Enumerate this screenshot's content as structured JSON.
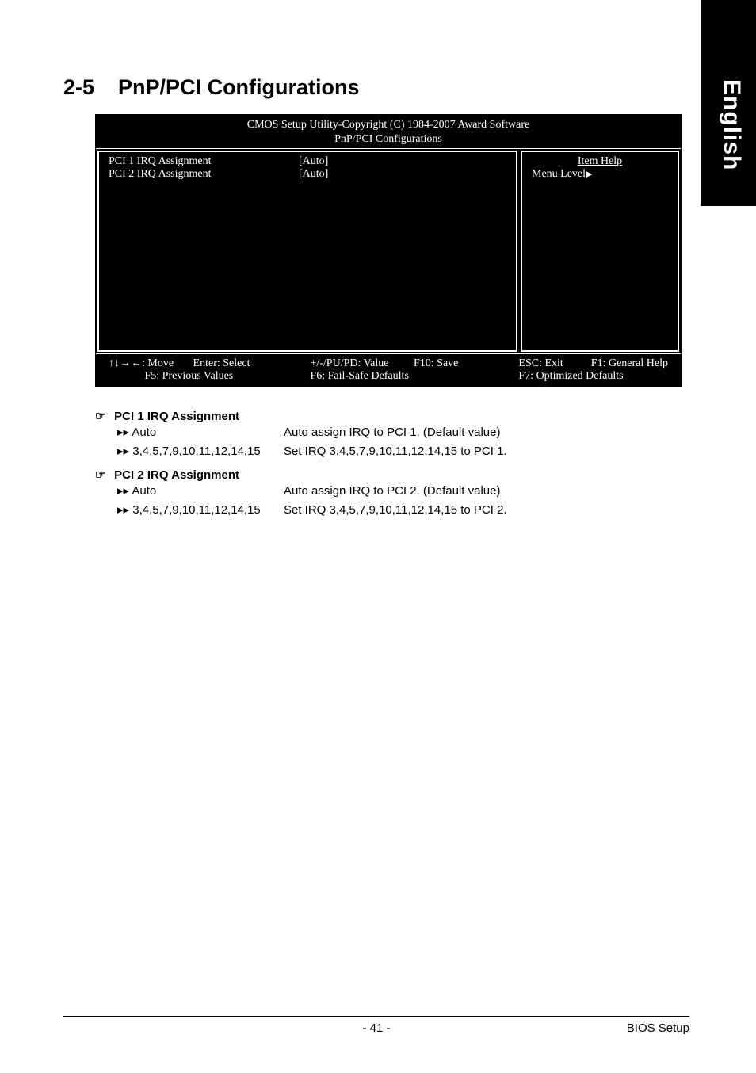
{
  "sideTab": "English",
  "sectionNumber": "2-5",
  "sectionTitle": "PnP/PCI Configurations",
  "bios": {
    "headerLine1": "CMOS Setup Utility-Copyright (C) 1984-2007 Award Software",
    "headerLine2": "PnP/PCI Configurations",
    "rows": [
      {
        "label": "PCI 1 IRQ Assignment",
        "value": "[Auto]"
      },
      {
        "label": "PCI 2 IRQ Assignment",
        "value": "[Auto]"
      }
    ],
    "itemHelp": "Item Help",
    "menuLevel": "Menu Level",
    "footer": {
      "c1a": "↑↓→←: Move       Enter: Select",
      "c1b": "             F5: Previous Values",
      "c2a": "+/-/PU/PD: Value         F10: Save",
      "c2b": "F6: Fail-Safe Defaults",
      "c3a": "ESC: Exit          F1: General Help",
      "c3b": "F7: Optimized Defaults"
    }
  },
  "descriptions": [
    {
      "heading": "PCI 1 IRQ Assignment",
      "rows": [
        {
          "opt": "Auto",
          "text": "Auto assign IRQ to PCI 1. (Default value)"
        },
        {
          "opt": "3,4,5,7,9,10,11,12,14,15",
          "text": "Set IRQ 3,4,5,7,9,10,11,12,14,15 to PCI 1."
        }
      ]
    },
    {
      "heading": "PCI 2 IRQ Assignment",
      "rows": [
        {
          "opt": "Auto",
          "text": "Auto assign IRQ to PCI 2. (Default value)"
        },
        {
          "opt": "3,4,5,7,9,10,11,12,14,15",
          "text": "Set IRQ 3,4,5,7,9,10,11,12,14,15 to PCI 2."
        }
      ]
    }
  ],
  "footer": {
    "page": "- 41 -",
    "right": "BIOS Setup"
  }
}
